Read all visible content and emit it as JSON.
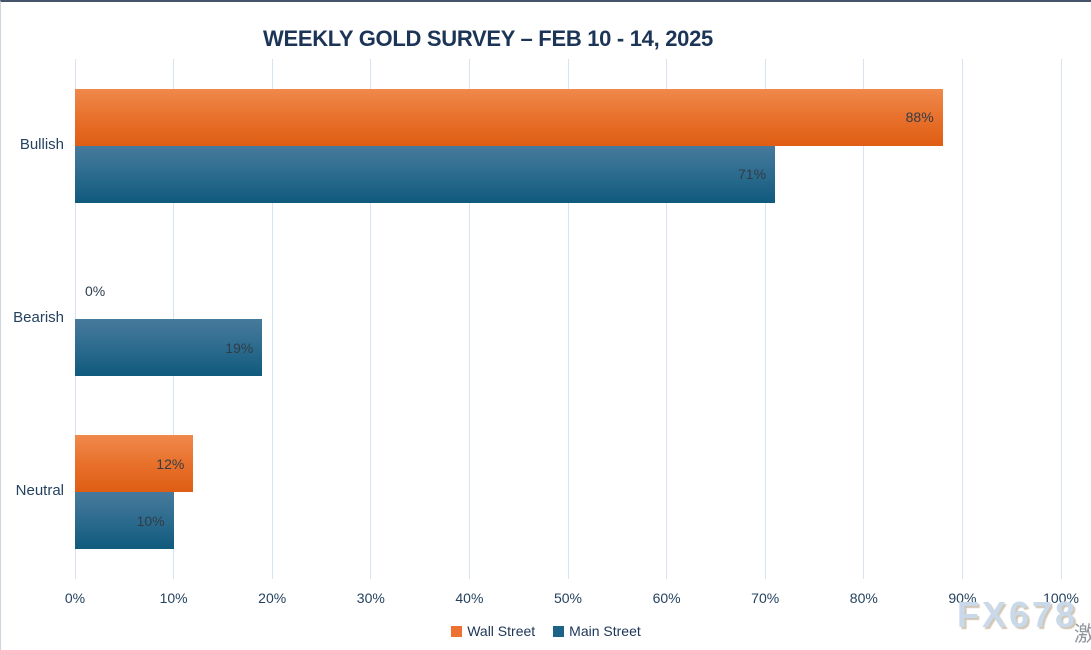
{
  "chart_data": {
    "type": "bar",
    "orientation": "horizontal",
    "title": "WEEKLY GOLD SURVEY – FEB 10 - 14, 2025",
    "categories": [
      "Bullish",
      "Bearish",
      "Neutral"
    ],
    "series": [
      {
        "name": "Wall Street",
        "color": "#ED7232",
        "values": [
          88,
          0,
          12
        ]
      },
      {
        "name": "Main Street",
        "color": "#1F6287",
        "values": [
          71,
          19,
          10
        ]
      }
    ],
    "value_suffix": "%",
    "xlim": [
      0,
      100
    ],
    "x_ticks": [
      "0%",
      "10%",
      "20%",
      "30%",
      "40%",
      "50%",
      "60%",
      "70%",
      "80%",
      "90%",
      "100%"
    ],
    "grid": true,
    "legend_position": "bottom",
    "colors": {
      "title_text": "#1c3557",
      "axis_text": "#24425f",
      "data_label_text": "#323c46",
      "gridline": "#d8e4f1",
      "wall_street_gradient_top": "#f0894c",
      "wall_street_gradient_bottom": "#df5d14",
      "main_street_gradient_top": "#477a9c",
      "main_street_gradient_bottom": "#0f5a7d"
    }
  },
  "watermark": {
    "text": "FX678",
    "partial_text": "激"
  }
}
